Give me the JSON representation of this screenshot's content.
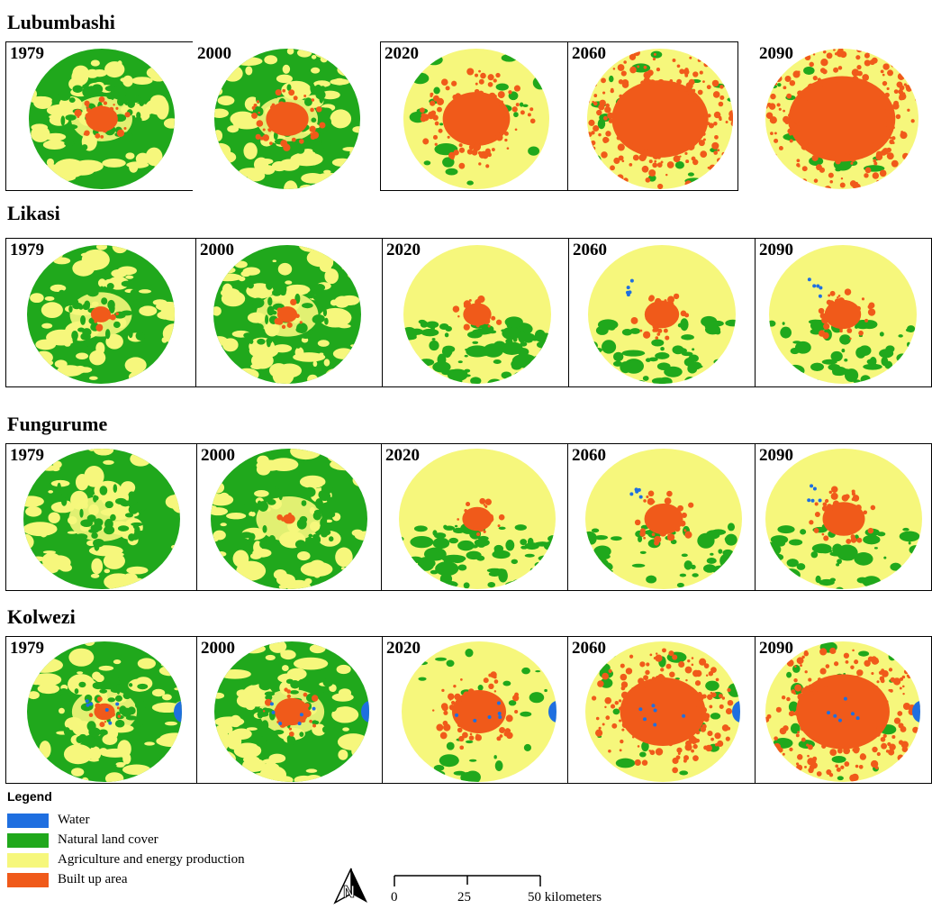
{
  "colors": {
    "water": "#1f6fe0",
    "natural": "#20a81c",
    "agriculture": "#f6f77c",
    "built": "#f05a1a"
  },
  "cities": [
    {
      "name": "Lubumbashi",
      "years": [
        "1979",
        "2000",
        "2020",
        "2060",
        "2090"
      ],
      "built_share": [
        0.08,
        0.14,
        0.35,
        0.72,
        0.8
      ],
      "natural_share": [
        0.55,
        0.45,
        0.06,
        0.03,
        0.02
      ],
      "water": [
        false,
        false,
        false,
        false,
        false
      ]
    },
    {
      "name": "Likasi",
      "years": [
        "1979",
        "2000",
        "2020",
        "2060",
        "2090"
      ],
      "built_share": [
        0.03,
        0.03,
        0.06,
        0.09,
        0.1
      ],
      "natural_share": [
        0.55,
        0.5,
        0.32,
        0.18,
        0.16
      ],
      "water": [
        false,
        false,
        false,
        true,
        true
      ]
    },
    {
      "name": "Fungurume",
      "years": [
        "1979",
        "2000",
        "2020",
        "2060",
        "2090"
      ],
      "built_share": [
        0.0,
        0.01,
        0.06,
        0.1,
        0.12
      ],
      "natural_share": [
        0.75,
        0.65,
        0.3,
        0.14,
        0.12
      ],
      "water": [
        false,
        false,
        false,
        true,
        true
      ]
    },
    {
      "name": "Kolwezi",
      "years": [
        "1979",
        "2000",
        "2020",
        "2060",
        "2090"
      ],
      "built_share": [
        0.03,
        0.08,
        0.2,
        0.5,
        0.6
      ],
      "natural_share": [
        0.55,
        0.45,
        0.08,
        0.04,
        0.03
      ],
      "water": [
        true,
        true,
        true,
        true,
        true
      ]
    }
  ],
  "legend": {
    "title": "Legend",
    "items": [
      {
        "key": "water",
        "label": "Water"
      },
      {
        "key": "natural",
        "label": "Natural land cover"
      },
      {
        "key": "agriculture",
        "label": "Agriculture and energy production"
      },
      {
        "key": "built",
        "label": "Built up area"
      }
    ]
  },
  "scale_bar": {
    "ticks": [
      "0",
      "25"
    ],
    "end_label": "50 kilometers"
  },
  "north_arrow": {
    "icon": "north-arrow-icon",
    "letter": "N"
  }
}
